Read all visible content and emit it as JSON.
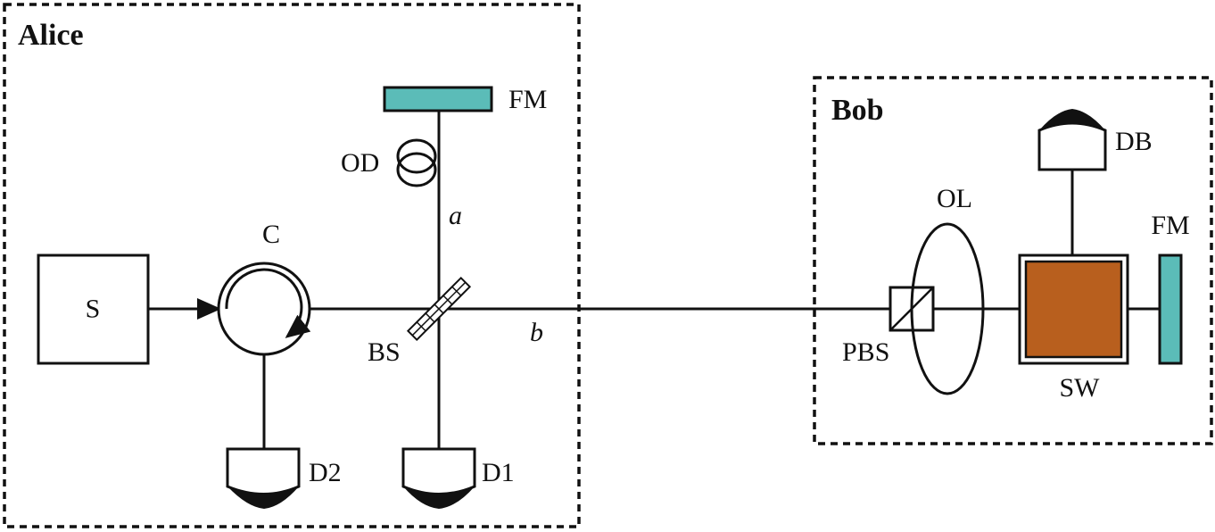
{
  "groups": {
    "alice": "Alice",
    "bob": "Bob"
  },
  "labels": {
    "source": "S",
    "circulator": "C",
    "beam_splitter": "BS",
    "faraday_mirror_alice": "FM",
    "optical_delay": "OD",
    "arm_a": "a",
    "arm_b": "b",
    "detector_1": "D1",
    "detector_2": "D2",
    "pbs": "PBS",
    "optical_lens": "OL",
    "switch": "SW",
    "faraday_mirror_bob": "FM",
    "detector_bob": "DB"
  },
  "colors": {
    "mirror_fill": "#5bbcb8",
    "switch_fill": "#b85f1e",
    "line": "#111111"
  }
}
